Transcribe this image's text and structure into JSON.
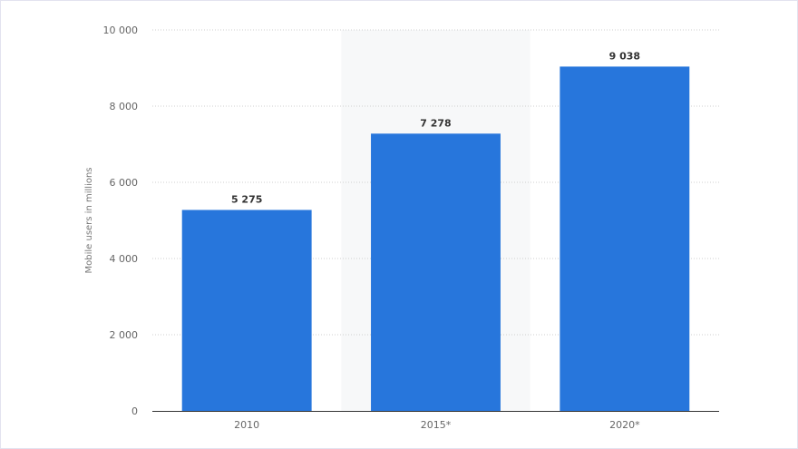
{
  "chart_data": {
    "type": "bar",
    "categories": [
      "2010",
      "2015*",
      "2020*"
    ],
    "values": [
      5275,
      7278,
      9038
    ],
    "value_labels": [
      "5 275",
      "7 278",
      "9 038"
    ],
    "title": "",
    "xlabel": "",
    "ylabel": "Mobile users in millions",
    "ylim": [
      0,
      10000
    ],
    "yticks": [
      0,
      2000,
      4000,
      6000,
      8000,
      10000
    ],
    "ytick_labels": [
      "0",
      "2 000",
      "4 000",
      "6 000",
      "8 000",
      "10 000"
    ],
    "grid": true,
    "highlighted_category": "2015*",
    "colors": {
      "bar": "#2776dc",
      "highlight_band": "#f7f8f9",
      "grid": "#cfcfcf",
      "axis": "#333333"
    }
  }
}
